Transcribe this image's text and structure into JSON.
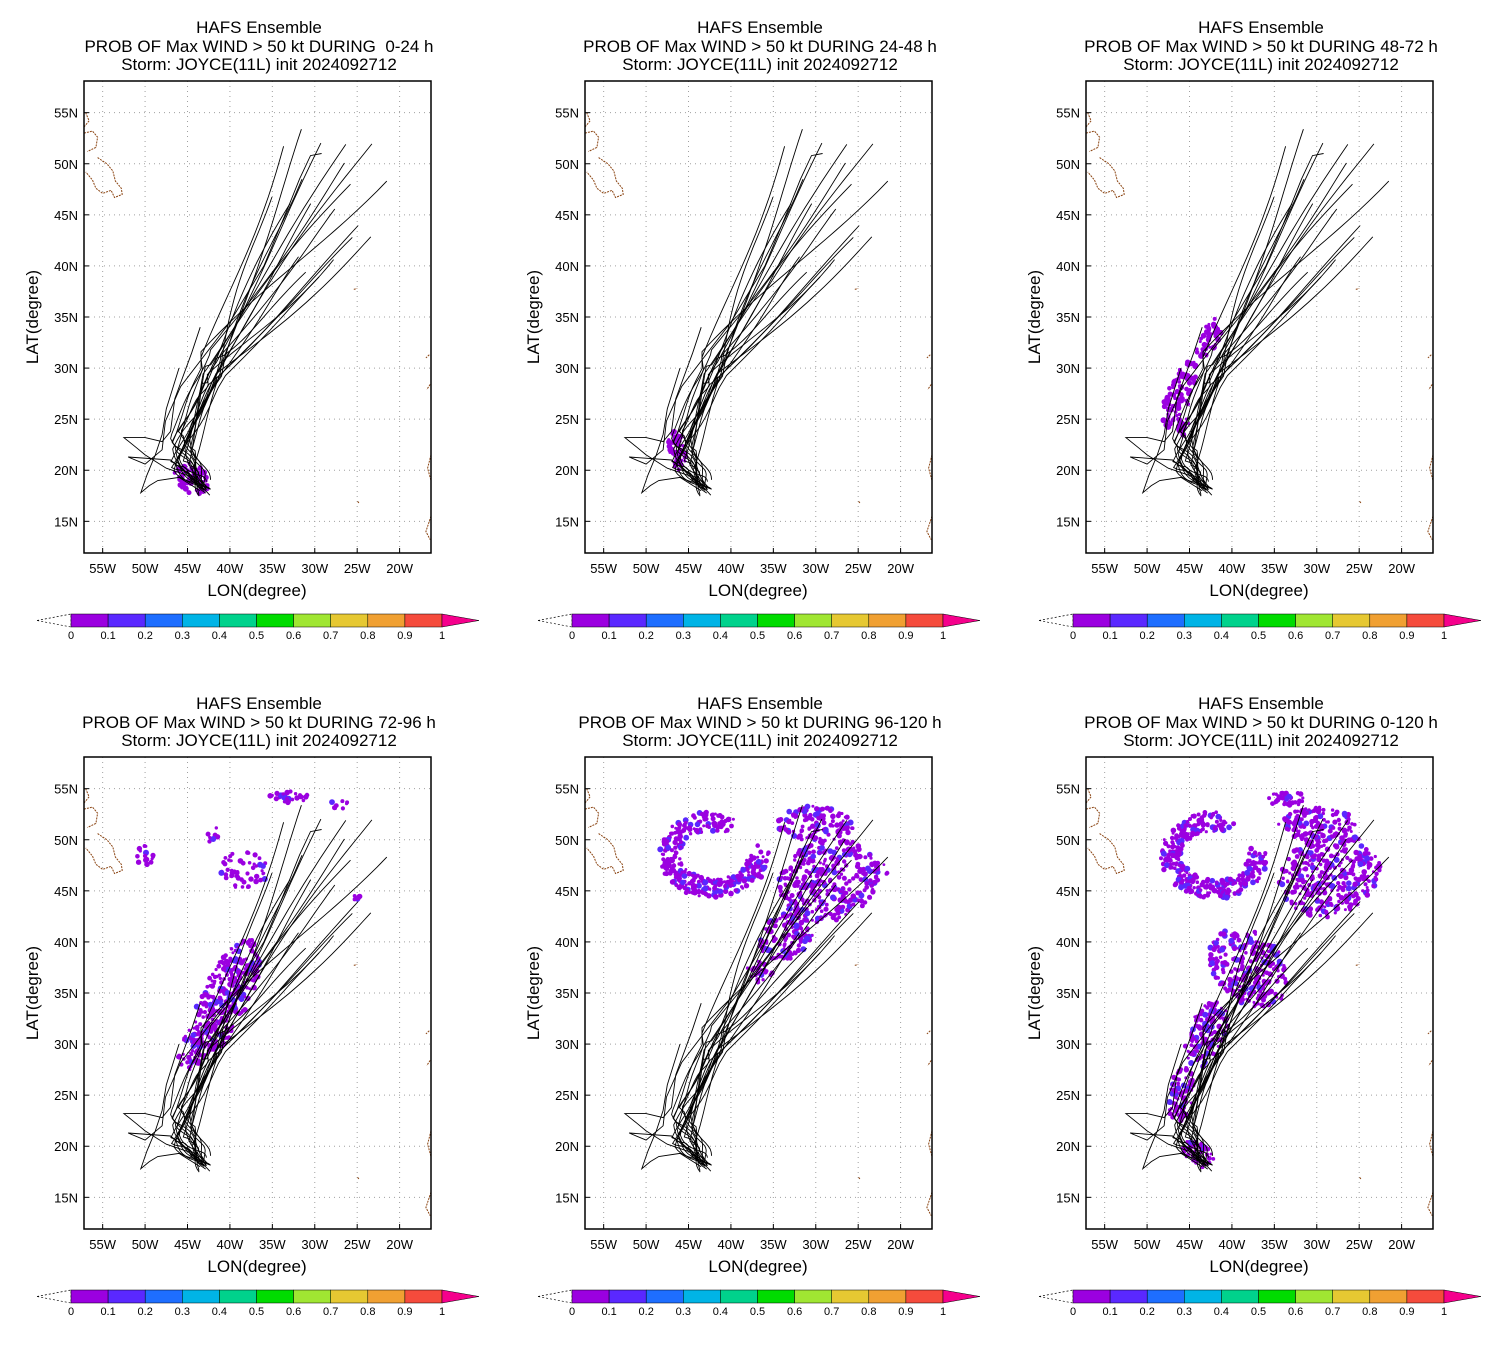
{
  "colors": {
    "scale": [
      "#9b00e0",
      "#5a28ff",
      "#1e6eff",
      "#00b4e6",
      "#00d28c",
      "#00dc00",
      "#a0e632",
      "#e6c832",
      "#f0a032",
      "#f54b3c",
      "#f5008c"
    ],
    "track": "#000000",
    "coast": "#8b4513",
    "grid": "#a0a0a0"
  },
  "common": {
    "title_line1": "HAFS Ensemble",
    "title_line3": "Storm: JOYCE(11L) init 2024092712",
    "xlabel": "LON(degree)",
    "ylabel": "LAT(degree)",
    "lat_ticks": [
      "55N",
      "50N",
      "45N",
      "40N",
      "35N",
      "30N",
      "25N",
      "20N",
      "15N"
    ],
    "lon_ticks": [
      "55W",
      "50W",
      "45W",
      "40W",
      "35W",
      "30W",
      "25W",
      "20W"
    ],
    "colorbar_labels": [
      "0",
      "0.1",
      "0.2",
      "0.3",
      "0.4",
      "0.5",
      "0.6",
      "0.7",
      "0.8",
      "0.9",
      "1"
    ]
  },
  "panels": [
    {
      "id": "p1",
      "title_line2": "PROB OF Max WIND > 50 kt DURING  0-24 h"
    },
    {
      "id": "p2",
      "title_line2": "PROB OF Max WIND > 50 kt DURING 24-48 h"
    },
    {
      "id": "p3",
      "title_line2": "PROB OF Max WIND > 50 kt DURING 48-72 h"
    },
    {
      "id": "p4",
      "title_line2": "PROB OF Max WIND > 50 kt DURING 72-96 h"
    },
    {
      "id": "p5",
      "title_line2": "PROB OF Max WIND > 50 kt DURING 96-120 h"
    },
    {
      "id": "p6",
      "title_line2": "PROB OF Max WIND > 50 kt DURING 0-120 h"
    }
  ],
  "map": {
    "lon_range": [
      "57W",
      "16W"
    ],
    "lat_range": [
      "12N",
      "58N"
    ],
    "grid": "dotted",
    "legend": "bottom colorbar"
  }
}
